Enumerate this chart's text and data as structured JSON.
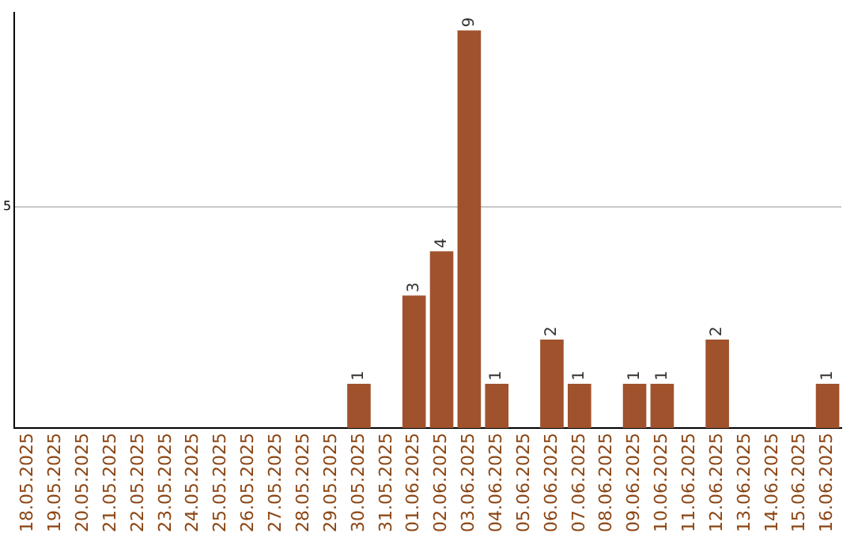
{
  "chart_data": {
    "type": "bar",
    "categories": [
      "18.05.2025",
      "19.05.2025",
      "20.05.2025",
      "21.05.2025",
      "22.05.2025",
      "23.05.2025",
      "24.05.2025",
      "25.05.2025",
      "26.05.2025",
      "27.05.2025",
      "28.05.2025",
      "29.05.2025",
      "30.05.2025",
      "31.05.2025",
      "01.06.2025",
      "02.06.2025",
      "03.06.2025",
      "04.06.2025",
      "05.06.2025",
      "06.06.2025",
      "07.06.2025",
      "08.06.2025",
      "09.06.2025",
      "10.06.2025",
      "11.06.2025",
      "12.06.2025",
      "13.06.2025",
      "14.06.2025",
      "15.06.2025",
      "16.06.2025"
    ],
    "values": [
      null,
      null,
      null,
      null,
      null,
      null,
      null,
      null,
      null,
      null,
      null,
      null,
      1,
      null,
      3,
      4,
      9,
      1,
      null,
      2,
      1,
      null,
      1,
      1,
      null,
      2,
      null,
      null,
      null,
      1
    ],
    "color": "#a0522d",
    "ylim": [
      0,
      9.4
    ],
    "yticks": [
      5
    ],
    "grid": "y",
    "data_labels": true,
    "legend": false
  }
}
